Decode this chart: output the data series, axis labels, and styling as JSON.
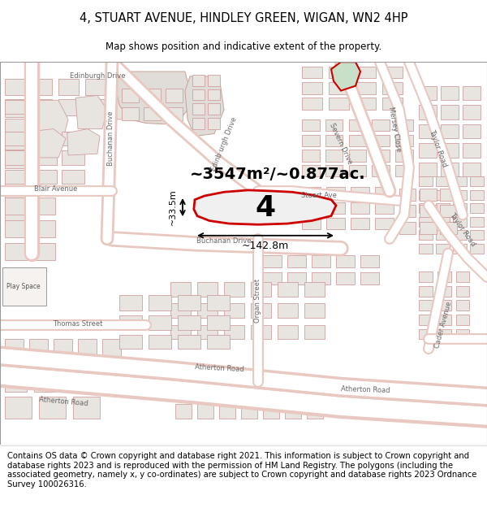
{
  "title_line1": "4, STUART AVENUE, HINDLEY GREEN, WIGAN, WN2 4HP",
  "title_line2": "Map shows position and indicative extent of the property.",
  "map_bg": "#f5f2ef",
  "road_outline": "#e8c8c0",
  "road_fill": "#ffffff",
  "building_fill": "#e8e4e0",
  "building_edge": "#d0a0a0",
  "block_fill": "#e0dcd8",
  "block_edge": "#c8a098",
  "highlight_fill": "#c8dfc8",
  "highlight_edge": "#cc0000",
  "prop_fill": "#f0f0f0",
  "prop_edge": "#cc0000",
  "property_label": "4",
  "area_text": "~3547m²/~0.877ac.",
  "dim_width": "~142.8m",
  "dim_height": "~33.5m",
  "footer_text": "Contains OS data © Crown copyright and database right 2021. This information is subject to Crown copyright and database rights 2023 and is reproduced with the permission of HM Land Registry. The polygons (including the associated geometry, namely x, y co-ordinates) are subject to Crown copyright and database rights 2023 Ordnance Survey 100026316.",
  "footer_fontsize": 7.2,
  "title_fontsize1": 10.5,
  "title_fontsize2": 8.5
}
